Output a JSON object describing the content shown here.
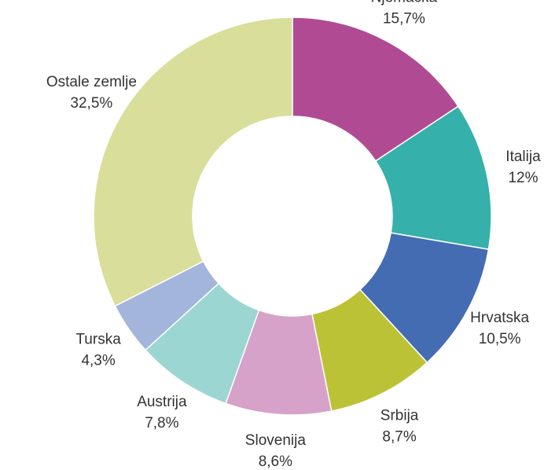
{
  "chart_data": {
    "type": "donut",
    "categories": [
      "Njemačka",
      "Italija",
      "Hrvatska",
      "Srbija",
      "Slovenija",
      "Austrija",
      "Turska",
      "Ostale zemlje"
    ],
    "values": [
      15.7,
      12,
      10.5,
      8.7,
      8.6,
      7.8,
      4.3,
      32.5
    ],
    "value_labels": [
      "15,7%",
      "12%",
      "10,5%",
      "8,7%",
      "8,6%",
      "7,8%",
      "4,3%",
      "32,5%"
    ],
    "colors": [
      "#b04b93",
      "#35b0aa",
      "#446cb3",
      "#bcc235",
      "#d6a2c9",
      "#9bd6d3",
      "#a3b5db",
      "#d9df9a"
    ]
  }
}
